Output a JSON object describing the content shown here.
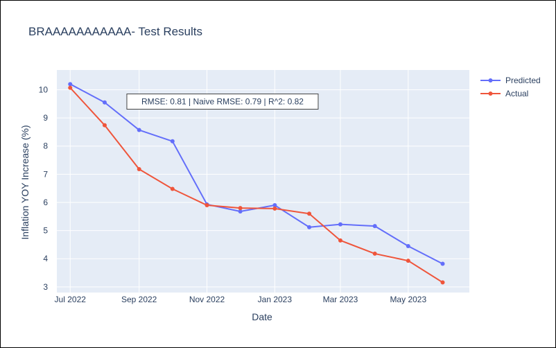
{
  "chart_data": {
    "type": "line",
    "title": "BRAAAAAAAAAAA- Test Results",
    "xlabel": "Date",
    "ylabel": "Inflation YOY Increase (%)",
    "x": [
      "2022-07-01",
      "2022-08-01",
      "2022-09-01",
      "2022-10-01",
      "2022-11-01",
      "2022-12-01",
      "2023-01-01",
      "2023-02-01",
      "2023-03-01",
      "2023-04-01",
      "2023-05-01",
      "2023-06-01"
    ],
    "x_ticks": [
      "2022-07-01",
      "2022-09-01",
      "2022-11-01",
      "2023-01-01",
      "2023-03-01",
      "2023-05-01"
    ],
    "x_tick_labels": [
      "Jul 2022",
      "Sep 2022",
      "Nov 2022",
      "Jan 2023",
      "Mar 2023",
      "May 2023"
    ],
    "xlim": [
      "2022-06-19",
      "2023-06-25"
    ],
    "ylim": [
      2.8,
      10.7
    ],
    "y_ticks": [
      3,
      4,
      5,
      6,
      7,
      8,
      9,
      10
    ],
    "y_tick_labels": [
      "3",
      "4",
      "5",
      "6",
      "7",
      "8",
      "9",
      "10"
    ],
    "grid": true,
    "legend_position": "top-right",
    "series": [
      {
        "name": "Predicted",
        "color": "#636efa",
        "values": [
          10.2,
          9.55,
          8.57,
          8.17,
          5.93,
          5.68,
          5.9,
          5.12,
          5.22,
          5.16,
          4.45,
          3.82
        ]
      },
      {
        "name": "Actual",
        "color": "#ef553b",
        "values": [
          10.07,
          8.74,
          7.18,
          6.48,
          5.9,
          5.8,
          5.78,
          5.6,
          4.65,
          4.18,
          3.93,
          3.16
        ]
      }
    ],
    "annotation": {
      "text": "RMSE: 0.81 | Naive RMSE: 0.79 | R^2: 0.82",
      "x": "2022-11-15",
      "y": 9.58
    }
  }
}
